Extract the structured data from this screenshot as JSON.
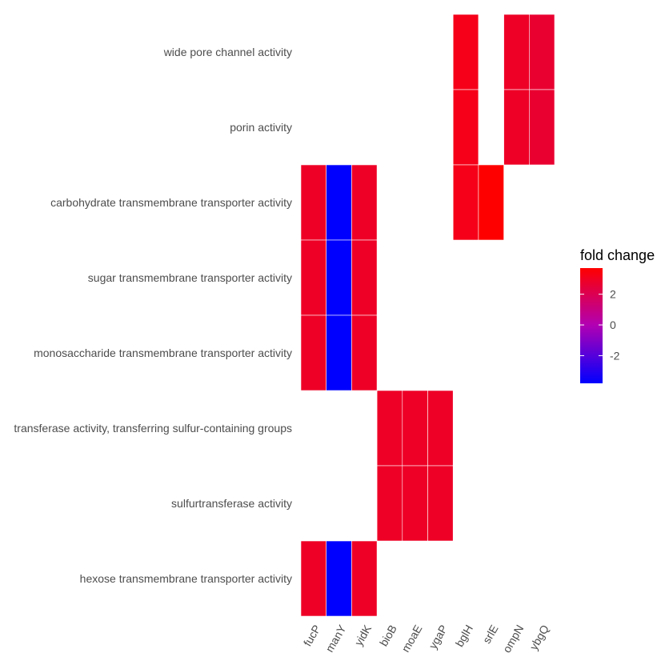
{
  "chart_data": {
    "type": "heatmap",
    "title": "",
    "xlabel": "",
    "ylabel": "",
    "x_categories": [
      "fucP",
      "manY",
      "yidK",
      "bioB",
      "moaE",
      "ygaP",
      "bglH",
      "srlE",
      "ompN",
      "ybgQ"
    ],
    "y_categories": [
      "wide pore channel activity",
      "porin activity",
      "carbohydrate transmembrane transporter activity",
      "sugar transmembrane transporter activity",
      "monosaccharide transmembrane transporter activity",
      "transferase activity, transferring sulfur-containing groups",
      "sulfurtransferase activity",
      "hexose transmembrane transporter activity"
    ],
    "cells": [
      {
        "y": "wide pore channel activity",
        "x": "bglH",
        "value": 3.2
      },
      {
        "y": "wide pore channel activity",
        "x": "ompN",
        "value": 2.9
      },
      {
        "y": "wide pore channel activity",
        "x": "ybgQ",
        "value": 2.7
      },
      {
        "y": "porin activity",
        "x": "bglH",
        "value": 3.2
      },
      {
        "y": "porin activity",
        "x": "ompN",
        "value": 2.9
      },
      {
        "y": "porin activity",
        "x": "ybgQ",
        "value": 2.7
      },
      {
        "y": "carbohydrate transmembrane transporter activity",
        "x": "fucP",
        "value": 2.9
      },
      {
        "y": "carbohydrate transmembrane transporter activity",
        "x": "manY",
        "value": -3.8
      },
      {
        "y": "carbohydrate transmembrane transporter activity",
        "x": "yidK",
        "value": 2.9
      },
      {
        "y": "carbohydrate transmembrane transporter activity",
        "x": "bglH",
        "value": 3.2
      },
      {
        "y": "carbohydrate transmembrane transporter activity",
        "x": "srlE",
        "value": 3.7
      },
      {
        "y": "sugar transmembrane transporter activity",
        "x": "fucP",
        "value": 2.9
      },
      {
        "y": "sugar transmembrane transporter activity",
        "x": "manY",
        "value": -3.8
      },
      {
        "y": "sugar transmembrane transporter activity",
        "x": "yidK",
        "value": 2.9
      },
      {
        "y": "monosaccharide transmembrane transporter activity",
        "x": "fucP",
        "value": 2.9
      },
      {
        "y": "monosaccharide transmembrane transporter activity",
        "x": "manY",
        "value": -3.8
      },
      {
        "y": "monosaccharide transmembrane transporter activity",
        "x": "yidK",
        "value": 2.9
      },
      {
        "y": "transferase activity, transferring sulfur-containing groups",
        "x": "bioB",
        "value": 2.9
      },
      {
        "y": "transferase activity, transferring sulfur-containing groups",
        "x": "moaE",
        "value": 2.9
      },
      {
        "y": "transferase activity, transferring sulfur-containing groups",
        "x": "ygaP",
        "value": 2.9
      },
      {
        "y": "sulfurtransferase activity",
        "x": "bioB",
        "value": 2.9
      },
      {
        "y": "sulfurtransferase activity",
        "x": "moaE",
        "value": 2.9
      },
      {
        "y": "sulfurtransferase activity",
        "x": "ygaP",
        "value": 2.9
      },
      {
        "y": "hexose transmembrane transporter activity",
        "x": "fucP",
        "value": 2.9
      },
      {
        "y": "hexose transmembrane transporter activity",
        "x": "manY",
        "value": -3.8
      },
      {
        "y": "hexose transmembrane transporter activity",
        "x": "yidK",
        "value": 2.9
      }
    ],
    "color_scale": {
      "low_color": "#0000ff",
      "mid_color": "#b200b2",
      "high_color": "#ff0000",
      "range": [
        -3.8,
        3.7
      ]
    },
    "legend": {
      "title": "fold change",
      "ticks": [
        2,
        0,
        -2
      ],
      "tick_labels": [
        "2",
        "0",
        "-2"
      ],
      "placement": "right"
    },
    "grid": false
  }
}
